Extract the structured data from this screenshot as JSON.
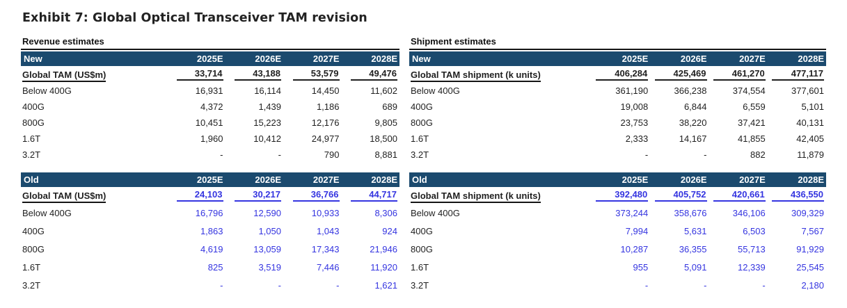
{
  "title": "Exhibit 7: Global Optical Transceiver TAM revision",
  "colors": {
    "header_bg": "#1B4A6E",
    "old_value_blue": "#3434E0",
    "text": "#1F1F1F"
  },
  "sections": {
    "revenue": {
      "label": "Revenue estimates"
    },
    "shipment": {
      "label": "Shipment estimates"
    }
  },
  "tables": {
    "revenue_new": {
      "header": "New",
      "style": "new",
      "columns": [
        "2025E",
        "2026E",
        "2027E",
        "2028E"
      ],
      "metric": {
        "label": "Global TAM (US$m)",
        "values": [
          "33,714",
          "43,188",
          "53,579",
          "49,476"
        ]
      },
      "rows": [
        {
          "label": "Below 400G",
          "values": [
            "16,931",
            "16,114",
            "14,450",
            "11,602"
          ]
        },
        {
          "label": "400G",
          "values": [
            "4,372",
            "1,439",
            "1,186",
            "689"
          ]
        },
        {
          "label": "800G",
          "values": [
            "10,451",
            "15,223",
            "12,176",
            "9,805"
          ]
        },
        {
          "label": "1.6T",
          "values": [
            "1,960",
            "10,412",
            "24,977",
            "18,500"
          ]
        },
        {
          "label": "3.2T",
          "values": [
            "-",
            "-",
            "790",
            "8,881"
          ]
        }
      ]
    },
    "revenue_old": {
      "header": "Old",
      "style": "old",
      "columns": [
        "2025E",
        "2026E",
        "2027E",
        "2028E"
      ],
      "metric": {
        "label": "Global TAM (US$m)",
        "values": [
          "24,103",
          "30,217",
          "36,766",
          "44,717"
        ]
      },
      "rows": [
        {
          "label": "Below 400G",
          "values": [
            "16,796",
            "12,590",
            "10,933",
            "8,306"
          ]
        },
        {
          "label": "400G",
          "values": [
            "1,863",
            "1,050",
            "1,043",
            "924"
          ]
        },
        {
          "label": "800G",
          "values": [
            "4,619",
            "13,059",
            "17,343",
            "21,946"
          ]
        },
        {
          "label": "1.6T",
          "values": [
            "825",
            "3,519",
            "7,446",
            "11,920"
          ]
        },
        {
          "label": "3.2T",
          "values": [
            "-",
            "-",
            "-",
            "1,621"
          ]
        }
      ]
    },
    "shipment_new": {
      "header": "New",
      "style": "new",
      "columns": [
        "2025E",
        "2026E",
        "2027E",
        "2028E"
      ],
      "metric": {
        "label": "Global TAM shipment (k units)",
        "values": [
          "406,284",
          "425,469",
          "461,270",
          "477,117"
        ]
      },
      "rows": [
        {
          "label": "Below 400G",
          "values": [
            "361,190",
            "366,238",
            "374,554",
            "377,601"
          ]
        },
        {
          "label": "400G",
          "values": [
            "19,008",
            "6,844",
            "6,559",
            "5,101"
          ]
        },
        {
          "label": "800G",
          "values": [
            "23,753",
            "38,220",
            "37,421",
            "40,131"
          ]
        },
        {
          "label": "1.6T",
          "values": [
            "2,333",
            "14,167",
            "41,855",
            "42,405"
          ]
        },
        {
          "label": "3.2T",
          "values": [
            "-",
            "-",
            "882",
            "11,879"
          ]
        }
      ]
    },
    "shipment_old": {
      "header": "Old",
      "style": "old",
      "columns": [
        "2025E",
        "2026E",
        "2027E",
        "2028E"
      ],
      "metric": {
        "label": "Global TAM shipment (k units)",
        "values": [
          "392,480",
          "405,752",
          "420,661",
          "436,550"
        ]
      },
      "rows": [
        {
          "label": "Below 400G",
          "values": [
            "373,244",
            "358,676",
            "346,106",
            "309,329"
          ]
        },
        {
          "label": "400G",
          "values": [
            "7,994",
            "5,631",
            "6,503",
            "7,567"
          ]
        },
        {
          "label": "800G",
          "values": [
            "10,287",
            "36,355",
            "55,713",
            "91,929"
          ]
        },
        {
          "label": "1.6T",
          "values": [
            "955",
            "5,091",
            "12,339",
            "25,545"
          ]
        },
        {
          "label": "3.2T",
          "values": [
            "-",
            "-",
            "-",
            "2,180"
          ]
        }
      ]
    }
  }
}
